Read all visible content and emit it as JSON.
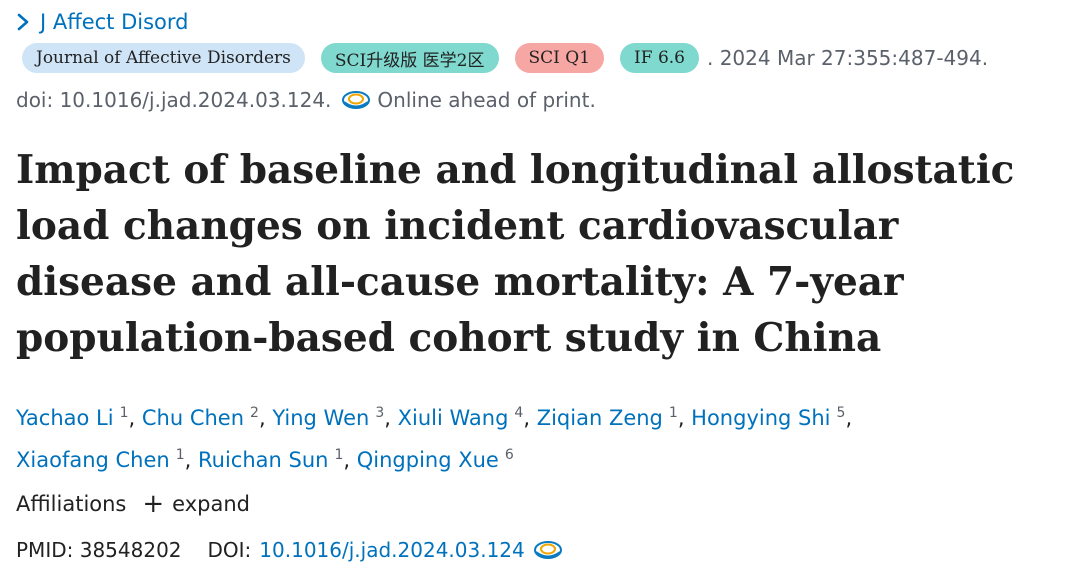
{
  "journal": {
    "link_label": "J Affect Disord"
  },
  "badges": {
    "journal_name": "Journal of Affective Disorders",
    "sci_partition": "SCI升级版 医学2区",
    "sci_quartile": "SCI Q1",
    "impact_factor": "IF 6.6"
  },
  "citation": {
    "date_volume_pages": ". 2024 Mar 27:355:487-494.",
    "doi": "doi: 10.1016/j.jad.2024.03.124.",
    "status": "Online ahead of print."
  },
  "article": {
    "title": "Impact of baseline and longitudinal allostatic load changes on incident cardiovascular disease and all-cause mortality: A 7-year population-based cohort study in China"
  },
  "authors": [
    {
      "name": "Yachao Li",
      "aff": "1"
    },
    {
      "name": "Chu Chen",
      "aff": "2"
    },
    {
      "name": "Ying Wen",
      "aff": "3"
    },
    {
      "name": "Xiuli Wang",
      "aff": "4"
    },
    {
      "name": "Ziqian Zeng",
      "aff": "1"
    },
    {
      "name": "Hongying Shi",
      "aff": "5"
    },
    {
      "name": "Xiaofang Chen",
      "aff": "1"
    },
    {
      "name": "Ruichan Sun",
      "aff": "1"
    },
    {
      "name": "Qingping Xue",
      "aff": "6"
    }
  ],
  "affiliations": {
    "label": "Affiliations",
    "expand_icon": "plus-icon",
    "expand_label": "expand"
  },
  "identifiers": {
    "pmid_label": "PMID:",
    "pmid": "38548202",
    "doi_label": "DOI:",
    "doi": "10.1016/j.jad.2024.03.124"
  },
  "icons": {
    "fulltext": "eye-icon",
    "journal_link": "chevron-right-icon"
  },
  "colors": {
    "link": "#0071bc",
    "badge_journal": "#cfe4f7",
    "badge_sci": "#7fd9cf",
    "badge_q1": "#f6a7a3"
  }
}
